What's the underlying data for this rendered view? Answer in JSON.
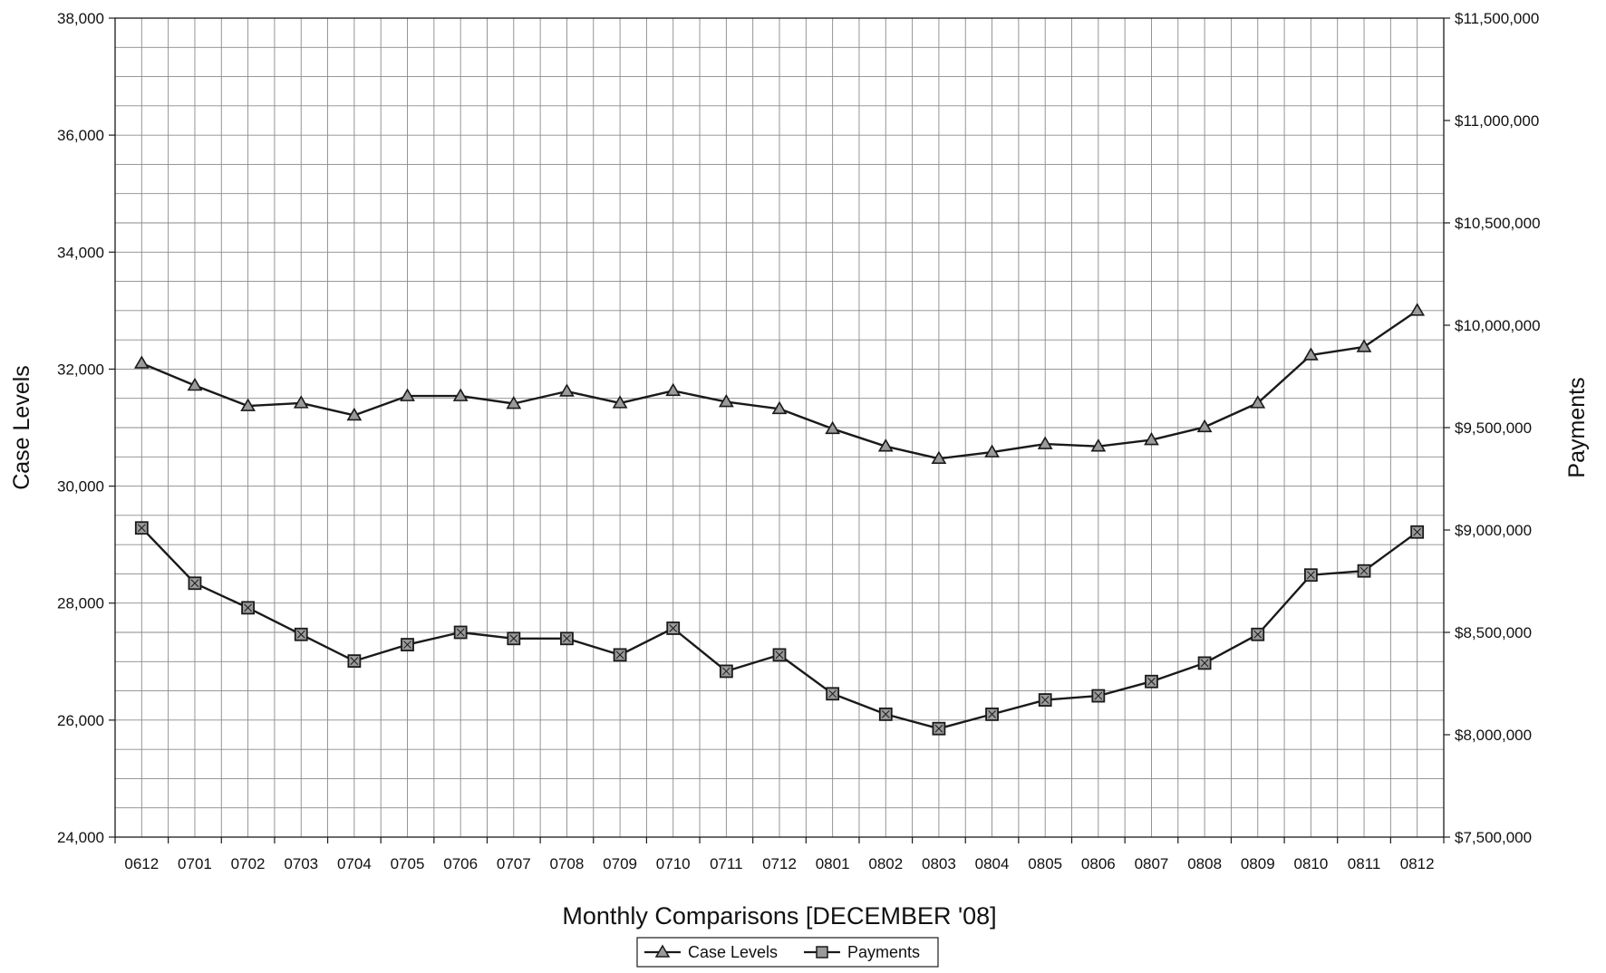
{
  "chart_data": {
    "type": "line",
    "title": "",
    "xlabel": "Monthly Comparisons [DECEMBER '08]",
    "ylabel": "Case Levels",
    "ylabel_right": "Payments",
    "categories": [
      "0612",
      "0701",
      "0702",
      "0703",
      "0704",
      "0705",
      "0706",
      "0707",
      "0708",
      "0709",
      "0710",
      "0711",
      "0712",
      "0801",
      "0802",
      "0803",
      "0804",
      "0805",
      "0806",
      "0807",
      "0808",
      "0809",
      "0810",
      "0811",
      "0812"
    ],
    "ylim": [
      24000,
      38000
    ],
    "ylim_right": [
      7500000,
      11500000
    ],
    "y_ticks": [
      "24,000",
      "26,000",
      "28,000",
      "30,000",
      "32,000",
      "34,000",
      "36,000",
      "38,000"
    ],
    "y_ticks_right": [
      "$7,500,000",
      "$8,000,000",
      "$8,500,000",
      "$9,000,000",
      "$9,500,000",
      "$10,000,000",
      "$10,500,000",
      "$11,000,000",
      "$11,500,000"
    ],
    "grid": true,
    "legend_position": "bottom",
    "series": [
      {
        "name": "Case Levels",
        "axis": "left",
        "marker": "triangle",
        "values": [
          32100,
          31720,
          31370,
          31420,
          31210,
          31540,
          31540,
          31410,
          31620,
          31420,
          31630,
          31440,
          31320,
          30980,
          30680,
          30470,
          30580,
          30720,
          30680,
          30790,
          31010,
          31420,
          32240,
          32380,
          33000
        ]
      },
      {
        "name": "Payments",
        "axis": "right",
        "marker": "square",
        "values": [
          9010000,
          8740000,
          8620000,
          8490000,
          8360000,
          8440000,
          8500000,
          8470000,
          8470000,
          8390000,
          8520000,
          8310000,
          8390000,
          8200000,
          8100000,
          8030000,
          8100000,
          8170000,
          8190000,
          8260000,
          8350000,
          8490000,
          8780000,
          8800000,
          8990000
        ]
      }
    ]
  },
  "colors": {
    "line": "#1a1a1a",
    "grid": "#8a8a8a",
    "marker_fill": "#9a9a9a"
  }
}
